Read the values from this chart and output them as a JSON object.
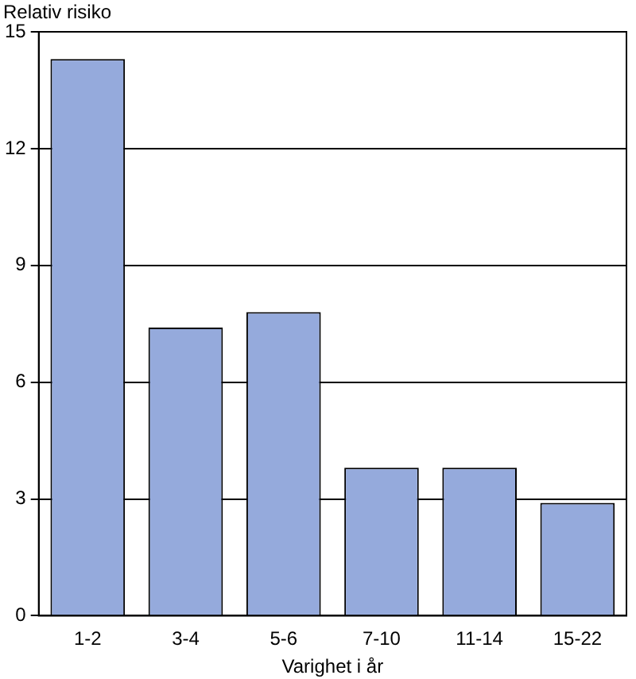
{
  "chart_data": {
    "type": "bar",
    "ylabel": "Relativ risiko",
    "xlabel": "Varighet i år",
    "categories": [
      "1-2",
      "3-4",
      "5-6",
      "7-10",
      "11-14",
      "15-22"
    ],
    "values": [
      14.3,
      7.4,
      7.8,
      3.8,
      3.8,
      2.9
    ],
    "color": "#95aadc",
    "ylim": [
      0,
      15
    ],
    "yticks": [
      0,
      3,
      6,
      9,
      12,
      15
    ],
    "grid": "y",
    "legend": false
  }
}
